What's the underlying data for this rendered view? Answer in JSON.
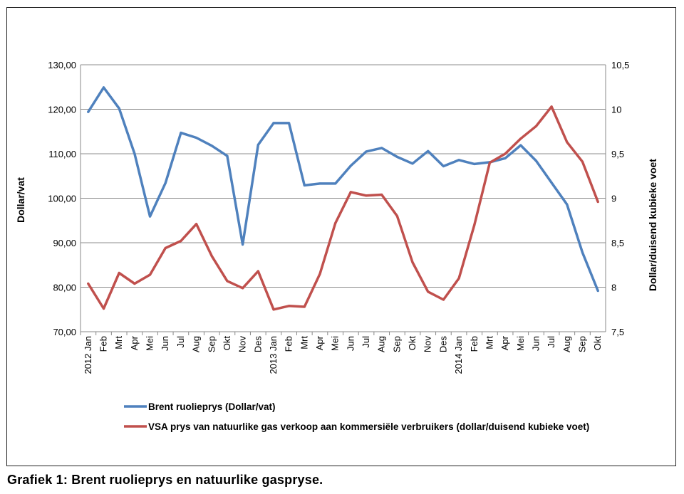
{
  "caption": "Grafiek 1: Brent ruolieprys en natuurlike gaspryse.",
  "chart_data": {
    "type": "line",
    "x": [
      "2012 Jan",
      "Feb",
      "Mrt",
      "Apr",
      "Mei",
      "Jun",
      "Jul",
      "Aug",
      "Sep",
      "Okt",
      "Nov",
      "Des",
      "2013 Jan",
      "Feb",
      "Mrt",
      "Apr",
      "Mei",
      "Jun",
      "Jul",
      "Aug",
      "Sep",
      "Okt",
      "Nov",
      "Des",
      "2014 Jan",
      "Feb",
      "Mrt",
      "Apr",
      "Mei",
      "Jun",
      "Jul",
      "Aug",
      "Sep",
      "Okt"
    ],
    "ylabel": "Dollar/vat",
    "y2label": "Dollar/duisend kubieke voet",
    "ylim": [
      70,
      130
    ],
    "y2lim": [
      7.5,
      10.5
    ],
    "yticks": [
      "70,00",
      "80,00",
      "90,00",
      "100,00",
      "110,00",
      "120,00",
      "130,00"
    ],
    "y2ticks": [
      "7,5",
      "8",
      "8,5",
      "9",
      "9,5",
      "10",
      "10,5"
    ],
    "grid": true,
    "legend": "bottom",
    "series": [
      {
        "name": "Brent ruolieprys (Dollar/vat)",
        "axis": "left",
        "color": "#4f81bd",
        "values": [
          119.4,
          124.9,
          120.2,
          110.0,
          95.9,
          103.4,
          114.7,
          113.6,
          111.8,
          109.5,
          89.6,
          112.0,
          116.9,
          116.9,
          102.9,
          103.3,
          103.3,
          107.3,
          110.5,
          111.3,
          109.3,
          107.8,
          110.6,
          107.2,
          108.6,
          107.7,
          108.1,
          109.0,
          111.9,
          108.4,
          103.5,
          98.6,
          87.8,
          79.2
        ]
      },
      {
        "name": "VSA prys van natuurlike gas verkoop aan kommersiële verbruikers (dollar/duisend kubieke voet)",
        "axis": "right",
        "color": "#c0504d",
        "values": [
          8.04,
          7.76,
          8.16,
          8.04,
          8.14,
          8.44,
          8.52,
          8.71,
          8.35,
          8.07,
          7.99,
          8.18,
          7.75,
          7.79,
          7.78,
          8.15,
          8.72,
          9.07,
          9.03,
          9.04,
          8.8,
          8.28,
          7.95,
          7.86,
          8.1,
          8.7,
          9.4,
          9.5,
          9.67,
          9.81,
          10.03,
          9.63,
          9.41,
          8.96
        ]
      }
    ]
  }
}
